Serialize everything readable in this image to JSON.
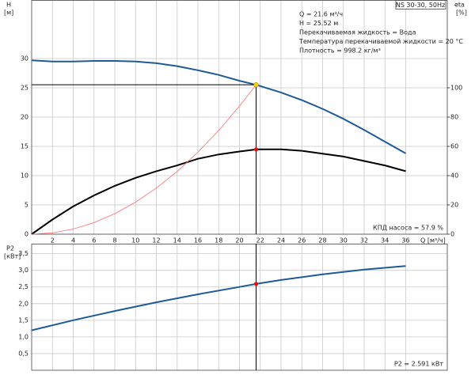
{
  "chart_data": [
    {
      "type": "line",
      "title": "NS 30-30, 50Hz",
      "x_label": "Q [м³/ч]",
      "y_label": "H",
      "y_unit": "[м]",
      "y2_label": "eta",
      "y2_unit": "[%]",
      "xlim": [
        0,
        40
      ],
      "xticks": [
        2,
        4,
        6,
        8,
        10,
        12,
        14,
        16,
        18,
        20,
        22,
        24,
        26,
        28,
        30,
        32,
        34,
        36
      ],
      "ylim": [
        0,
        40
      ],
      "yticks": [
        0,
        5,
        10,
        15,
        20,
        25,
        30
      ],
      "y2lim": [
        0,
        160
      ],
      "y2ticks": [
        0,
        20,
        40,
        60,
        80,
        100
      ],
      "grid": true,
      "series": [
        {
          "color": "#1f5a96",
          "x": [
            0,
            2,
            4,
            6,
            8,
            10,
            12,
            14,
            16,
            18,
            20,
            21.6,
            22,
            24,
            26,
            28,
            30,
            32,
            34,
            36
          ],
          "values": [
            29.7,
            29.5,
            29.5,
            29.6,
            29.6,
            29.5,
            29.2,
            28.7,
            28,
            27.2,
            26.2,
            25.52,
            25.3,
            24.2,
            22.9,
            21.4,
            19.7,
            17.8,
            15.8,
            13.8
          ]
        },
        {
          "color": "#000000",
          "axis": "y2",
          "x": [
            0,
            2,
            4,
            6,
            8,
            10,
            12,
            14,
            16,
            18,
            20,
            21.6,
            22,
            24,
            26,
            28,
            30,
            32,
            34,
            36
          ],
          "values": [
            0,
            10,
            19,
            26.5,
            33,
            38.5,
            43,
            47,
            51.5,
            54.5,
            56.5,
            57.9,
            58,
            58,
            57,
            55,
            53,
            50,
            47,
            43
          ]
        },
        {
          "color": "#ff6b6b",
          "x": [
            0,
            2,
            4,
            6,
            8,
            10,
            12,
            14,
            16,
            18,
            20,
            21.6
          ],
          "values": [
            0,
            0.219,
            0.875,
            1.969,
            3.501,
            5.47,
            7.876,
            10.721,
            14.003,
            17.722,
            21.879,
            25.52
          ]
        }
      ],
      "annotations": [
        "Q = 21.6 м³/ч",
        "H = 25.52 м",
        "Перекачиваемая жидкость = Вода",
        "Температура перекачиваемой жидкости = 20 °C",
        "Плотность = 998.2 кг/м³"
      ],
      "efficiency_label": "КПД насоса = 57.9 %",
      "duty_point": {
        "q": 21.6,
        "h": 25.52,
        "eta": 57.9
      }
    },
    {
      "type": "line",
      "y_label": "P2",
      "y_unit": "[кВт]",
      "xlim": [
        0,
        40
      ],
      "xticks": [
        2,
        4,
        6,
        8,
        10,
        12,
        14,
        16,
        18,
        20,
        22,
        24,
        26,
        28,
        30,
        32,
        34,
        36
      ],
      "ylim": [
        0,
        3.8
      ],
      "yticks": [
        {
          "value": 0.5,
          "label": "0,5"
        },
        {
          "value": 1,
          "label": "1,0"
        },
        {
          "value": 1.5,
          "label": "1,5"
        },
        {
          "value": 2,
          "label": "2,0"
        },
        {
          "value": 2.5,
          "label": "2,5"
        },
        {
          "value": 3,
          "label": "3,0"
        },
        {
          "value": 3.5,
          "label": "3,5"
        }
      ],
      "grid": true,
      "series": [
        {
          "color": "#1f5a96",
          "x": [
            0,
            4,
            8,
            12,
            16,
            20,
            21.6,
            24,
            28,
            32,
            36
          ],
          "values": [
            1.2,
            1.5,
            1.78,
            2.04,
            2.28,
            2.5,
            2.591,
            2.71,
            2.88,
            3.02,
            3.13
          ]
        }
      ],
      "power_label": "P2 = 2.591 кВт",
      "duty_point": {
        "q": 21.6,
        "p2": 2.591
      }
    }
  ]
}
